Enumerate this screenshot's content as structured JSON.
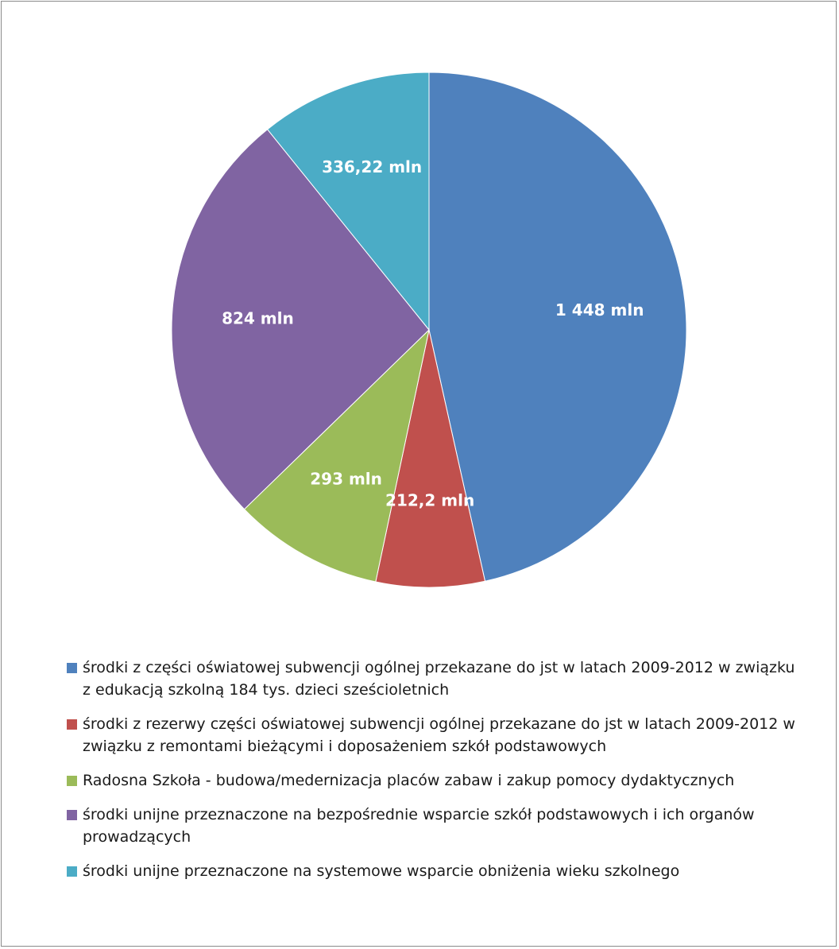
{
  "chart_data": {
    "type": "pie",
    "slices": [
      {
        "value": 1448,
        "label": "1 448 mln",
        "color": "#4f81bd",
        "legend": "środki z części oświatowej subwencji ogólnej  przekazane do jst w latach 2009-2012 w związku z edukacją szkolną 184 tys. dzieci sześcioletnich"
      },
      {
        "value": 212.2,
        "label": "212,2 mln",
        "color": "#c0504d",
        "legend": "środki z rezerwy części oświatowej subwencji ogólnej  przekazane do jst w latach 2009-2012 w związku z remontami bieżącymi i doposażeniem szkół podstawowych"
      },
      {
        "value": 293,
        "label": "293 mln",
        "color": "#9bbb59",
        "legend": "Radosna Szkoła - budowa/medernizacja placów zabaw i zakup pomocy dydaktycznych"
      },
      {
        "value": 824,
        "label": "824 mln",
        "color": "#8064a2",
        "legend": "środki unijne przeznaczone na bezpośrednie wsparcie szkół podstawowych i ich organów prowadzących"
      },
      {
        "value": 336.22,
        "label": "336,22 mln",
        "color": "#4bacc6",
        "legend": "środki unijne przeznaczone na systemowe wsparcie obniżenia wieku szkolnego"
      }
    ],
    "start_angle": "12 o'clock",
    "direction": "clockwise",
    "legend_position": "bottom"
  }
}
